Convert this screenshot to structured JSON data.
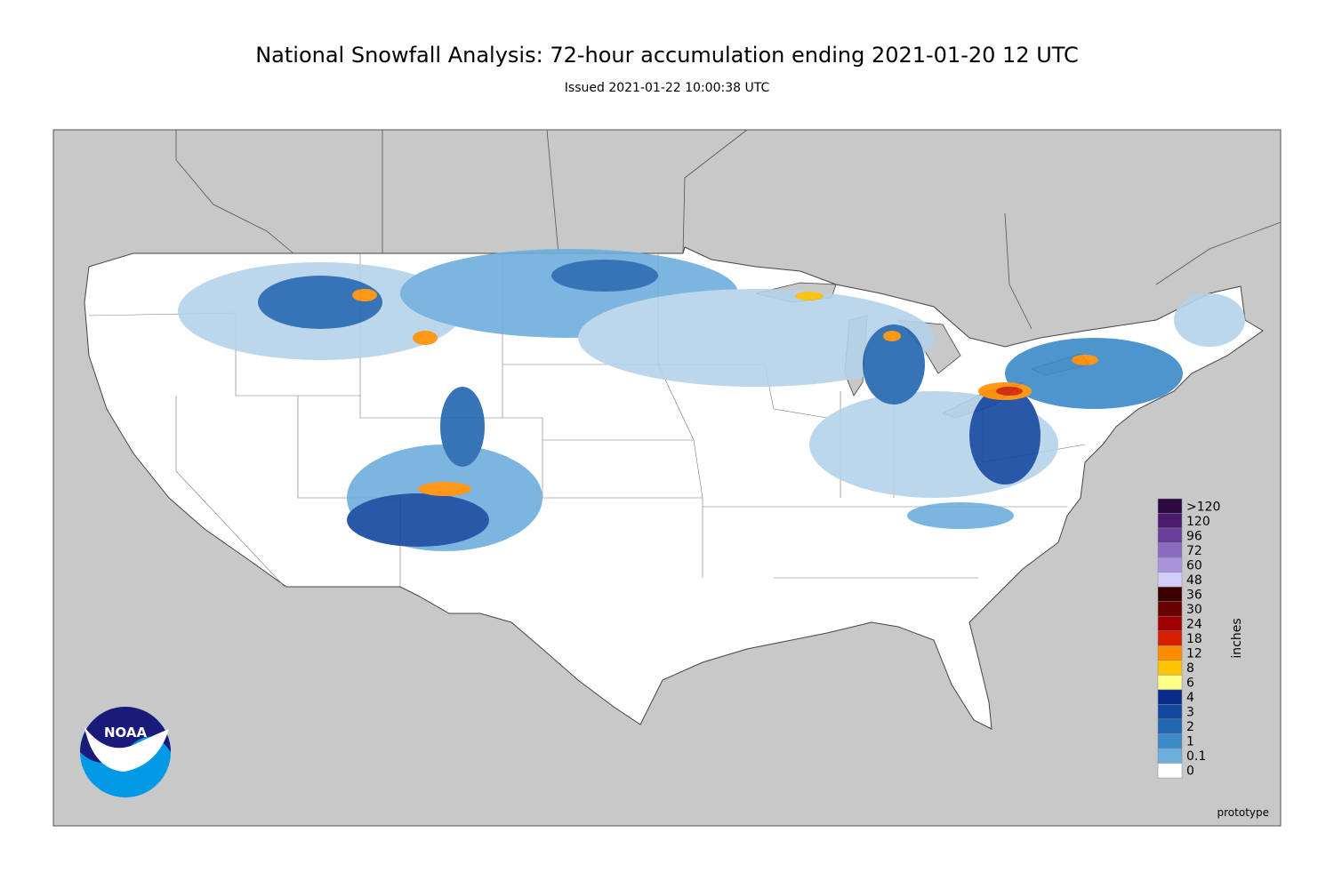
{
  "header": {
    "title": "National Snowfall Analysis: 72-hour accumulation ending 2021-01-20 12 UTC",
    "subtitle": "Issued 2021-01-22 10:00:38 UTC"
  },
  "legend": {
    "unit_label": "inches",
    "entries": [
      {
        "label": ">120",
        "color": "#2b0b3f"
      },
      {
        "label": "120",
        "color": "#4a1a6e"
      },
      {
        "label": "96",
        "color": "#6a3d9a"
      },
      {
        "label": "72",
        "color": "#8c6cc2"
      },
      {
        "label": "60",
        "color": "#a994dc"
      },
      {
        "label": "48",
        "color": "#d2cdfa"
      },
      {
        "label": "36",
        "color": "#3a0000"
      },
      {
        "label": "30",
        "color": "#6b0000"
      },
      {
        "label": "24",
        "color": "#a00000"
      },
      {
        "label": "18",
        "color": "#d42000"
      },
      {
        "label": "12",
        "color": "#ff8c00"
      },
      {
        "label": "8",
        "color": "#ffc400"
      },
      {
        "label": "6",
        "color": "#ffff88"
      },
      {
        "label": "4",
        "color": "#0a2a8c"
      },
      {
        "label": "3",
        "color": "#1247a0"
      },
      {
        "label": "2",
        "color": "#2166b0"
      },
      {
        "label": "1",
        "color": "#3d8ac8"
      },
      {
        "label": "0.1",
        "color": "#6eaedc"
      },
      {
        "label": "0",
        "color": "#ffffff"
      }
    ]
  },
  "logo": {
    "text": "NOAA"
  },
  "footer": {
    "note": "prototype"
  }
}
